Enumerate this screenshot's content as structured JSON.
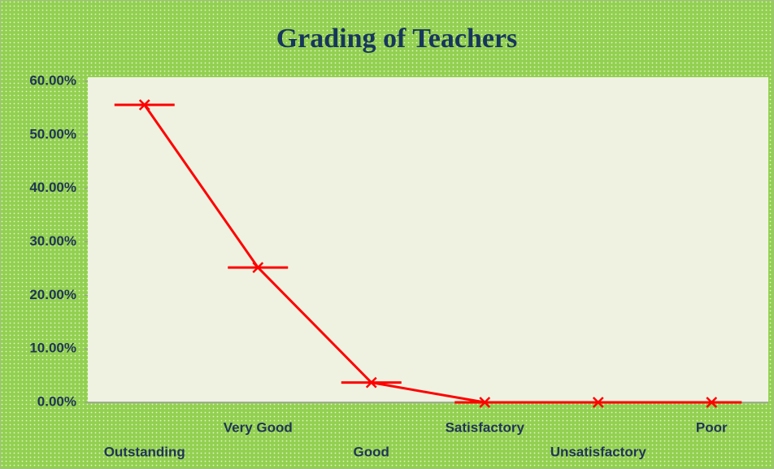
{
  "chart_data": {
    "type": "line",
    "title": "Grading of Teachers",
    "categories": [
      "Outstanding",
      "Very Good",
      "Good",
      "Satisfactory",
      "Unsatisfactory",
      "Poor"
    ],
    "series": [
      {
        "name": "Grading",
        "color": "#ff0000",
        "values": [
          55.6,
          25.2,
          3.7,
          0,
          0,
          0
        ]
      }
    ],
    "ylim": [
      0,
      60
    ],
    "yticks": [
      {
        "value": 0,
        "label": "0.00%"
      },
      {
        "value": 10,
        "label": "10.00%"
      },
      {
        "value": 20,
        "label": "20.00%"
      },
      {
        "value": 30,
        "label": "30.00%"
      },
      {
        "value": 40,
        "label": "40.00%"
      },
      {
        "value": 50,
        "label": "50.00%"
      },
      {
        "value": 60,
        "label": "60.00%"
      }
    ],
    "grid": false
  }
}
